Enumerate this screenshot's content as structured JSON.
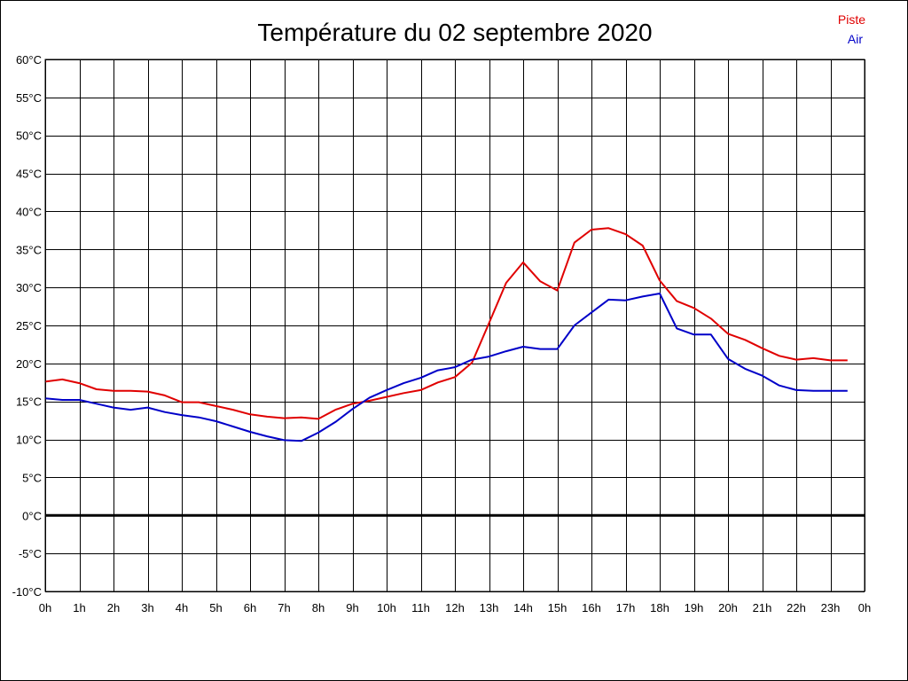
{
  "chart_data": {
    "type": "line",
    "title": "Température du 02 septembre 2020",
    "xlabel": "",
    "ylabel": "",
    "x_ticks": [
      "0h",
      "1h",
      "2h",
      "3h",
      "4h",
      "5h",
      "6h",
      "7h",
      "8h",
      "9h",
      "10h",
      "11h",
      "12h",
      "13h",
      "14h",
      "15h",
      "16h",
      "17h",
      "18h",
      "19h",
      "20h",
      "21h",
      "22h",
      "23h",
      "0h"
    ],
    "y_ticks": [
      "60°C",
      "55°C",
      "50°C",
      "45°C",
      "40°C",
      "35°C",
      "30°C",
      "25°C",
      "20°C",
      "15°C",
      "10°C",
      "5°C",
      "0°C",
      "-5°C",
      "-10°C"
    ],
    "xlim": [
      0,
      24
    ],
    "ylim": [
      -10,
      60
    ],
    "y_step": 5,
    "grid": true,
    "zero_line": true,
    "legend_placement": "top-right",
    "x": [
      0,
      0.5,
      1,
      1.5,
      2,
      2.5,
      3,
      3.5,
      4,
      4.5,
      5,
      5.5,
      6,
      6.5,
      7,
      7.5,
      8,
      8.5,
      9,
      9.5,
      10,
      10.5,
      11,
      11.5,
      12,
      12.5,
      13,
      13.5,
      14,
      14.5,
      15,
      15.5,
      16,
      16.5,
      17,
      17.5,
      18,
      18.5,
      19,
      19.5,
      20,
      20.5,
      21,
      21.5,
      22,
      22.5,
      23,
      23.5
    ],
    "series": [
      {
        "name": "Piste",
        "color": "#e00000",
        "values": [
          17.6,
          17.9,
          17.4,
          16.6,
          16.4,
          16.4,
          16.3,
          15.8,
          14.9,
          14.9,
          14.4,
          13.9,
          13.3,
          13.0,
          12.8,
          12.9,
          12.7,
          13.9,
          14.7,
          15.1,
          15.6,
          16.1,
          16.5,
          17.5,
          18.2,
          20.1,
          25.3,
          30.6,
          33.3,
          30.8,
          29.6,
          35.9,
          37.6,
          37.8,
          37.0,
          35.5,
          30.9,
          28.2,
          27.3,
          25.9,
          23.9,
          23.1,
          22.0,
          21.0,
          20.5,
          20.7,
          20.4,
          20.4
        ]
      },
      {
        "name": "Air",
        "color": "#0000c8",
        "values": [
          15.4,
          15.2,
          15.2,
          14.7,
          14.2,
          13.9,
          14.2,
          13.6,
          13.2,
          12.9,
          12.4,
          11.7,
          11.0,
          10.4,
          9.9,
          9.8,
          10.9,
          12.3,
          14.0,
          15.5,
          16.5,
          17.4,
          18.1,
          19.1,
          19.5,
          20.5,
          20.9,
          21.6,
          22.2,
          21.9,
          21.9,
          25.0,
          26.7,
          28.4,
          28.3,
          28.8,
          29.2,
          24.6,
          23.8,
          23.8,
          20.6,
          19.3,
          18.4,
          17.1,
          16.5,
          16.4,
          16.4,
          16.4
        ]
      }
    ]
  }
}
